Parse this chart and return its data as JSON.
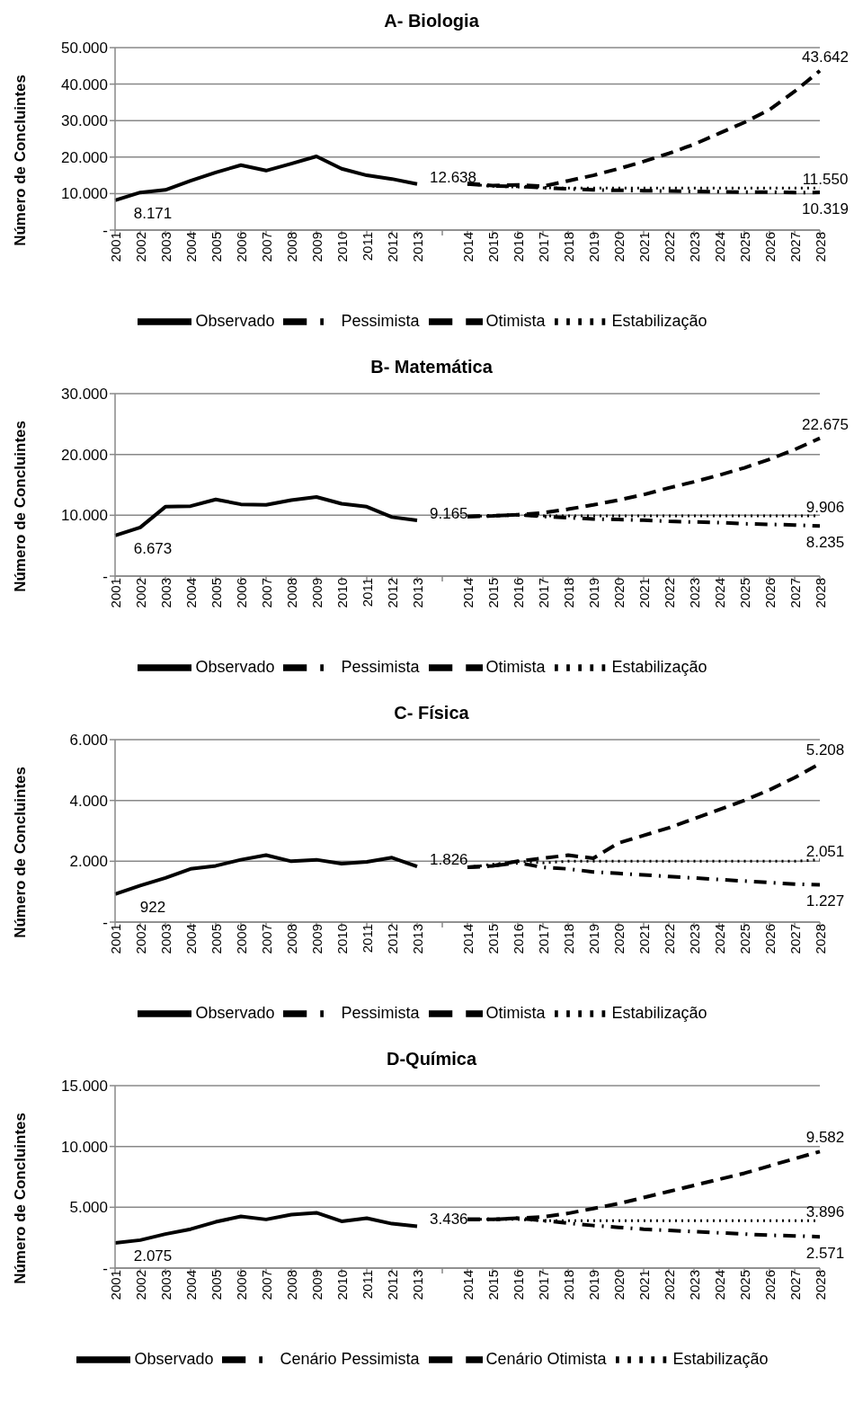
{
  "chart_data": [
    {
      "type": "line",
      "title": "A- Biologia",
      "ylabel": "Número de Concluintes",
      "categories": [
        "2001",
        "2002",
        "2003",
        "2004",
        "2005",
        "2006",
        "2007",
        "2008",
        "2009",
        "2010",
        "2011",
        "2012",
        "2013",
        null,
        "2014",
        "2015",
        "2016",
        "2017",
        "2018",
        "2019",
        "2020",
        "2021",
        "2022",
        "2023",
        "2024",
        "2025",
        "2026",
        "2027",
        "2028"
      ],
      "ylim": [
        0,
        50000
      ],
      "yticks": [
        {
          "value": 0,
          "label": "-"
        },
        {
          "value": 10000,
          "label": "10.000"
        },
        {
          "value": 20000,
          "label": "20.000"
        },
        {
          "value": 30000,
          "label": "30.000"
        },
        {
          "value": 40000,
          "label": "40.000"
        },
        {
          "value": 50000,
          "label": "50.000"
        }
      ],
      "grid": "y",
      "legend": "bottom",
      "marker": "none",
      "series": [
        {
          "name": "Observado",
          "color": "#000000",
          "line_style": "solid",
          "values": [
            8171,
            10300,
            11000,
            13500,
            15800,
            17800,
            16300,
            18200,
            20200,
            16800,
            15000,
            14000,
            12638,
            null,
            null,
            null,
            null,
            null,
            null,
            null,
            null,
            null,
            null,
            null,
            null,
            null,
            null,
            null,
            null
          ]
        },
        {
          "name": "Pessimista",
          "color": "#000000",
          "line_style": "dashdot",
          "values": [
            null,
            null,
            null,
            null,
            null,
            null,
            null,
            null,
            null,
            null,
            null,
            null,
            null,
            null,
            12600,
            12100,
            12000,
            11600,
            11300,
            11000,
            10900,
            10800,
            10700,
            10600,
            10500,
            10400,
            10400,
            10300,
            10319
          ]
        },
        {
          "name": "Otimista",
          "color": "#000000",
          "line_style": "dashed",
          "values": [
            null,
            null,
            null,
            null,
            null,
            null,
            null,
            null,
            null,
            null,
            null,
            null,
            null,
            null,
            12800,
            12200,
            12400,
            12000,
            13500,
            15000,
            16800,
            18800,
            21000,
            23500,
            26500,
            29500,
            33000,
            38000,
            43642
          ]
        },
        {
          "name": "Estabilização",
          "color": "#000000",
          "line_style": "dotted",
          "values": [
            null,
            null,
            null,
            null,
            null,
            null,
            null,
            null,
            null,
            null,
            null,
            null,
            null,
            null,
            12600,
            12000,
            11800,
            11600,
            11500,
            11500,
            11500,
            11500,
            11500,
            11500,
            11500,
            11500,
            11500,
            11500,
            11550
          ]
        }
      ],
      "annotations": [
        {
          "text": "8.171",
          "x": "2001",
          "y": 8171
        },
        {
          "text": "12.638",
          "x": "2013",
          "y": 12638
        },
        {
          "text": "43.642",
          "x": "2028",
          "y": 43642
        },
        {
          "text": "11.550",
          "x": "2028",
          "y": 11550
        },
        {
          "text": "10.319",
          "x": "2028",
          "y": 10319
        }
      ]
    },
    {
      "type": "line",
      "title": "B- Matemática",
      "ylabel": "Número de Concluintes",
      "categories": [
        "2001",
        "2002",
        "2003",
        "2004",
        "2005",
        "2006",
        "2007",
        "2008",
        "2009",
        "2010",
        "2011",
        "2012",
        "2013",
        null,
        "2014",
        "2015",
        "2016",
        "2017",
        "2018",
        "2019",
        "2020",
        "2021",
        "2022",
        "2023",
        "2024",
        "2025",
        "2026",
        "2027",
        "2028"
      ],
      "ylim": [
        0,
        30000
      ],
      "yticks": [
        {
          "value": 0,
          "label": "-"
        },
        {
          "value": 10000,
          "label": "10.000"
        },
        {
          "value": 20000,
          "label": "20.000"
        },
        {
          "value": 30000,
          "label": "30.000"
        }
      ],
      "grid": "y",
      "legend": "bottom",
      "marker": "none",
      "series": [
        {
          "name": "Observado",
          "color": "#000000",
          "line_style": "solid",
          "values": [
            6673,
            8000,
            11400,
            11500,
            12600,
            11800,
            11700,
            12500,
            13000,
            11900,
            11400,
            9700,
            9165,
            null,
            null,
            null,
            null,
            null,
            null,
            null,
            null,
            null,
            null,
            null,
            null,
            null,
            null,
            null,
            null
          ]
        },
        {
          "name": "Pessimista",
          "color": "#000000",
          "line_style": "dashdot",
          "values": [
            null,
            null,
            null,
            null,
            null,
            null,
            null,
            null,
            null,
            null,
            null,
            null,
            null,
            null,
            9800,
            9900,
            10100,
            9800,
            9600,
            9400,
            9300,
            9200,
            9000,
            8900,
            8800,
            8600,
            8500,
            8400,
            8235
          ]
        },
        {
          "name": "Otimista",
          "color": "#000000",
          "line_style": "dashed",
          "values": [
            null,
            null,
            null,
            null,
            null,
            null,
            null,
            null,
            null,
            null,
            null,
            null,
            null,
            null,
            9800,
            9900,
            10100,
            10400,
            11000,
            11700,
            12500,
            13400,
            14500,
            15500,
            16600,
            17800,
            19200,
            20800,
            22675
          ]
        },
        {
          "name": "Estabilização",
          "color": "#000000",
          "line_style": "dotted",
          "values": [
            null,
            null,
            null,
            null,
            null,
            null,
            null,
            null,
            null,
            null,
            null,
            null,
            null,
            null,
            9800,
            9900,
            10000,
            9900,
            9900,
            9900,
            9900,
            9900,
            9900,
            9900,
            9900,
            9900,
            9900,
            9900,
            9906
          ]
        }
      ],
      "annotations": [
        {
          "text": "6.673",
          "x": "2001",
          "y": 6673
        },
        {
          "text": "9.165",
          "x": "2013",
          "y": 9165
        },
        {
          "text": "22.675",
          "x": "2028",
          "y": 22675
        },
        {
          "text": "9.906",
          "x": "2028",
          "y": 9906
        },
        {
          "text": "8.235",
          "x": "2028",
          "y": 8235
        }
      ]
    },
    {
      "type": "line",
      "title": "C- Física",
      "ylabel": "Número de Concluintes",
      "categories": [
        "2001",
        "2002",
        "2003",
        "2004",
        "2005",
        "2006",
        "2007",
        "2008",
        "2009",
        "2010",
        "2011",
        "2012",
        "2013",
        null,
        "2014",
        "2015",
        "2016",
        "2017",
        "2018",
        "2019",
        "2020",
        "2021",
        "2022",
        "2023",
        "2024",
        "2025",
        "2026",
        "2027",
        "2028"
      ],
      "ylim": [
        0,
        6000
      ],
      "yticks": [
        {
          "value": 0,
          "label": "-"
        },
        {
          "value": 2000,
          "label": "2.000"
        },
        {
          "value": 4000,
          "label": "4.000"
        },
        {
          "value": 6000,
          "label": "6.000"
        }
      ],
      "grid": "y",
      "legend": "bottom",
      "marker": "none",
      "series": [
        {
          "name": "Observado",
          "color": "#000000",
          "line_style": "solid",
          "values": [
            922,
            1200,
            1450,
            1750,
            1850,
            2050,
            2200,
            2000,
            2050,
            1920,
            1980,
            2120,
            1826,
            null,
            null,
            null,
            null,
            null,
            null,
            null,
            null,
            null,
            null,
            null,
            null,
            null,
            null,
            null,
            null
          ]
        },
        {
          "name": "Pessimista",
          "color": "#000000",
          "line_style": "dashdot",
          "values": [
            null,
            null,
            null,
            null,
            null,
            null,
            null,
            null,
            null,
            null,
            null,
            null,
            null,
            null,
            1800,
            1850,
            1950,
            1800,
            1750,
            1650,
            1600,
            1550,
            1500,
            1450,
            1400,
            1350,
            1300,
            1250,
            1227
          ]
        },
        {
          "name": "Otimista",
          "color": "#000000",
          "line_style": "dashed",
          "values": [
            null,
            null,
            null,
            null,
            null,
            null,
            null,
            null,
            null,
            null,
            null,
            null,
            null,
            null,
            1800,
            1850,
            2000,
            2100,
            2200,
            2100,
            2600,
            2850,
            3100,
            3400,
            3700,
            4000,
            4350,
            4750,
            5208
          ]
        },
        {
          "name": "Estabilização",
          "color": "#000000",
          "line_style": "dotted",
          "values": [
            null,
            null,
            null,
            null,
            null,
            null,
            null,
            null,
            null,
            null,
            null,
            null,
            null,
            null,
            1800,
            1900,
            2000,
            1950,
            2000,
            2000,
            2000,
            2000,
            2000,
            2000,
            2000,
            2000,
            2000,
            2000,
            2051
          ]
        }
      ],
      "annotations": [
        {
          "text": "922",
          "x": "2001",
          "y": 922
        },
        {
          "text": "1.826",
          "x": "2013",
          "y": 1826
        },
        {
          "text": "5.208",
          "x": "2028",
          "y": 5208
        },
        {
          "text": "2.051",
          "x": "2028",
          "y": 2051
        },
        {
          "text": "1.227",
          "x": "2028",
          "y": 1227
        }
      ]
    },
    {
      "type": "line",
      "title": "D-Química",
      "ylabel": "Número de Concluintes",
      "categories": [
        "2001",
        "2002",
        "2003",
        "2004",
        "2005",
        "2006",
        "2007",
        "2008",
        "2009",
        "2010",
        "2011",
        "2012",
        "2013",
        null,
        "2014",
        "2015",
        "2016",
        "2017",
        "2018",
        "2019",
        "2020",
        "2021",
        "2022",
        "2023",
        "2024",
        "2025",
        "2026",
        "2027",
        "2028"
      ],
      "ylim": [
        0,
        15000
      ],
      "yticks": [
        {
          "value": 0,
          "label": "-"
        },
        {
          "value": 5000,
          "label": "5.000"
        },
        {
          "value": 10000,
          "label": "10.000"
        },
        {
          "value": 15000,
          "label": "15.000"
        }
      ],
      "grid": "y",
      "legend": "bottom",
      "marker": "none",
      "series": [
        {
          "name": "Observado",
          "color": "#000000",
          "line_style": "solid",
          "values": [
            2075,
            2300,
            2800,
            3200,
            3800,
            4250,
            4000,
            4400,
            4550,
            3850,
            4100,
            3650,
            3436,
            null,
            null,
            null,
            null,
            null,
            null,
            null,
            null,
            null,
            null,
            null,
            null,
            null,
            null,
            null,
            null
          ]
        },
        {
          "name": "Cenário Pessimista",
          "color": "#000000",
          "line_style": "dashdot",
          "values": [
            null,
            null,
            null,
            null,
            null,
            null,
            null,
            null,
            null,
            null,
            null,
            null,
            null,
            null,
            4000,
            4000,
            4100,
            3900,
            3700,
            3500,
            3350,
            3200,
            3100,
            3000,
            2900,
            2800,
            2700,
            2650,
            2571
          ]
        },
        {
          "name": "Cenário Otimista",
          "color": "#000000",
          "line_style": "dashed",
          "values": [
            null,
            null,
            null,
            null,
            null,
            null,
            null,
            null,
            null,
            null,
            null,
            null,
            null,
            null,
            4000,
            4000,
            4100,
            4200,
            4500,
            4900,
            5300,
            5800,
            6300,
            6800,
            7300,
            7800,
            8400,
            9000,
            9582
          ]
        },
        {
          "name": "Estabilização",
          "color": "#000000",
          "line_style": "dotted",
          "values": [
            null,
            null,
            null,
            null,
            null,
            null,
            null,
            null,
            null,
            null,
            null,
            null,
            null,
            null,
            4000,
            4000,
            4000,
            3900,
            3900,
            3900,
            3900,
            3900,
            3900,
            3900,
            3900,
            3900,
            3900,
            3900,
            3896
          ]
        }
      ],
      "annotations": [
        {
          "text": "2.075",
          "x": "2001",
          "y": 2075
        },
        {
          "text": "3.436",
          "x": "2013",
          "y": 3436
        },
        {
          "text": "9.582",
          "x": "2028",
          "y": 9582
        },
        {
          "text": "3.896",
          "x": "2028",
          "y": 3896
        },
        {
          "text": "2.571",
          "x": "2028",
          "y": 2571
        }
      ]
    }
  ]
}
